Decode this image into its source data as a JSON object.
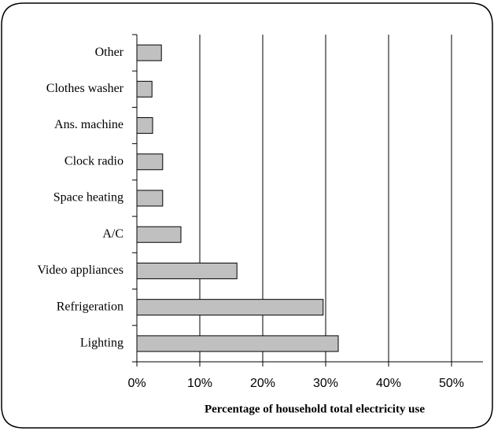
{
  "chart_data": {
    "type": "barh",
    "x_label": "Percentage of household total electricity use",
    "categories": [
      "Other",
      "Clothes washer",
      "Ans. machine",
      "Clock radio",
      "Space heating",
      "A/C",
      "Video appliances",
      "Refrigeration",
      "Lighting"
    ],
    "values": [
      3.9,
      2.4,
      2.5,
      4.1,
      4.1,
      7,
      15.9,
      29.6,
      32
    ],
    "color": "#c0c0c0",
    "xlim": [
      0,
      55
    ],
    "xticks": [
      {
        "value": 0,
        "label": "0%"
      },
      {
        "value": 10,
        "label": "10%"
      },
      {
        "value": 20,
        "label": "20%"
      },
      {
        "value": 30,
        "label": "30%"
      },
      {
        "value": 40,
        "label": "40%"
      },
      {
        "value": 50,
        "label": "50%"
      }
    ],
    "grid": true
  }
}
